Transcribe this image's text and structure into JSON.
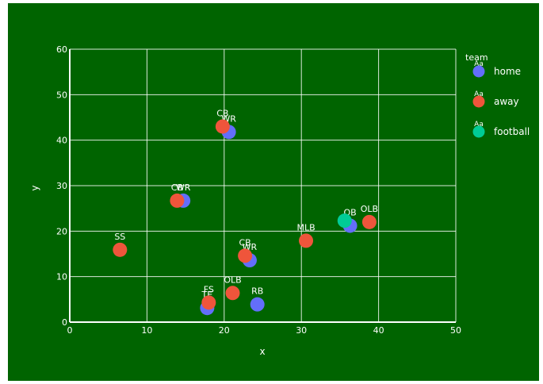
{
  "chart_data": {
    "type": "scatter",
    "xlabel": "x",
    "ylabel": "y",
    "xlim": [
      0,
      50
    ],
    "ylim": [
      0,
      60
    ],
    "x_ticks": [
      0,
      10,
      20,
      30,
      40,
      50
    ],
    "y_ticks": [
      0,
      10,
      20,
      30,
      40,
      50,
      60
    ],
    "grid": true,
    "background_color": "#006400",
    "gridline_color": "#ffffff",
    "legend": {
      "title": "team",
      "placement": "top-right",
      "marker_text": "Aa",
      "items": [
        {
          "name": "home",
          "color": "#636efa"
        },
        {
          "name": "away",
          "color": "#ef553b"
        },
        {
          "name": "football",
          "color": "#00cc96"
        }
      ]
    },
    "series": [
      {
        "name": "home",
        "color": "#636efa",
        "points": [
          {
            "x": 20.6,
            "y": 41.8,
            "label": "WR"
          },
          {
            "x": 14.7,
            "y": 26.7,
            "label": "WR"
          },
          {
            "x": 36.3,
            "y": 21.2,
            "label": "OB"
          },
          {
            "x": 23.3,
            "y": 13.6,
            "label": "WR"
          },
          {
            "x": 17.8,
            "y": 3.1,
            "label": "TE"
          },
          {
            "x": 24.3,
            "y": 3.9,
            "label": "RB"
          }
        ]
      },
      {
        "name": "away",
        "color": "#ef553b",
        "points": [
          {
            "x": 19.8,
            "y": 43.0,
            "label": "CB"
          },
          {
            "x": 13.9,
            "y": 26.7,
            "label": "CB"
          },
          {
            "x": 6.5,
            "y": 15.9,
            "label": "SS"
          },
          {
            "x": 30.6,
            "y": 17.9,
            "label": "MLB"
          },
          {
            "x": 38.8,
            "y": 22.0,
            "label": "OLB"
          },
          {
            "x": 22.7,
            "y": 14.6,
            "label": "CB"
          },
          {
            "x": 21.1,
            "y": 6.4,
            "label": "OLB"
          },
          {
            "x": 18.0,
            "y": 4.3,
            "label": "FS"
          }
        ]
      },
      {
        "name": "football",
        "color": "#00cc96",
        "points": [
          {
            "x": 35.6,
            "y": 22.3,
            "label": ""
          }
        ]
      }
    ]
  }
}
